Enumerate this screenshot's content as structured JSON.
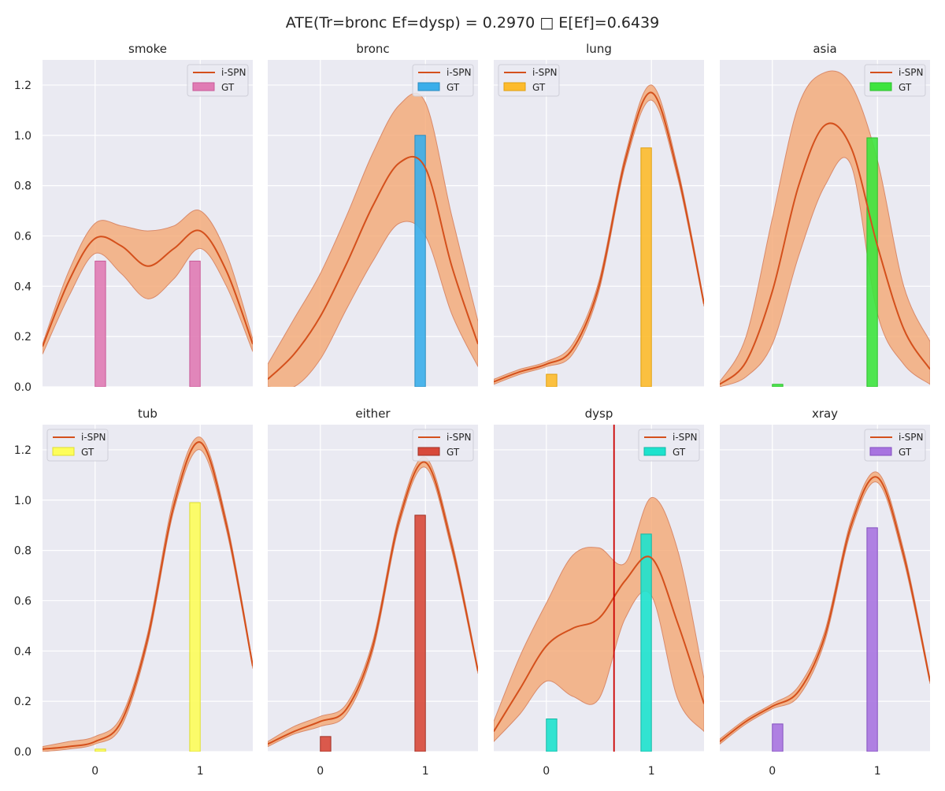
{
  "figure": {
    "title": "ATE(Tr=bronc Ef=dysp) = 0.2970 □ E[Ef]=0.6439"
  },
  "styles": {
    "panel_background": "#eaeaf2",
    "grid_color": "#ffffff",
    "curve_color": "#d4501c",
    "band_color": "#f4a873",
    "band_edge_color": "#d98a6a",
    "marker_line_color": "#cc0000"
  },
  "legend_labels": {
    "curve": "i-SPN",
    "bars": "GT"
  },
  "chart_data": [
    {
      "type": "area",
      "title": "smoke",
      "xlim": [
        -0.5,
        1.5
      ],
      "ylim": [
        0,
        1.3
      ],
      "xticks": [
        0,
        1
      ],
      "yticks": [
        0.0,
        0.2,
        0.4,
        0.6,
        0.8,
        1.0,
        1.2
      ],
      "legend_position": "top-right",
      "gt_color": "#e07bb4",
      "gt_edge": "#c85a98",
      "gt_bars": [
        {
          "x": 0,
          "value": 0.5
        },
        {
          "x": 1,
          "value": 0.5
        }
      ],
      "curve": {
        "x": [
          -0.5,
          -0.25,
          0.0,
          0.25,
          0.5,
          0.75,
          1.0,
          1.25,
          1.5
        ],
        "y": [
          0.16,
          0.42,
          0.59,
          0.56,
          0.48,
          0.55,
          0.62,
          0.46,
          0.17
        ]
      },
      "band_upper": [
        0.17,
        0.46,
        0.65,
        0.64,
        0.62,
        0.64,
        0.7,
        0.53,
        0.19
      ],
      "band_lower": [
        0.13,
        0.36,
        0.53,
        0.45,
        0.35,
        0.43,
        0.55,
        0.4,
        0.14
      ]
    },
    {
      "type": "area",
      "title": "bronc",
      "xlim": [
        -0.5,
        1.5
      ],
      "ylim": [
        0,
        1.3
      ],
      "xticks": [
        0,
        1
      ],
      "yticks": [
        0.0,
        0.2,
        0.4,
        0.6,
        0.8,
        1.0,
        1.2
      ],
      "legend_position": "top-right",
      "gt_color": "#3aaeea",
      "gt_edge": "#2a8cc0",
      "gt_bars": [
        {
          "x": 0,
          "value": 0.0
        },
        {
          "x": 1,
          "value": 1.0
        }
      ],
      "curve": {
        "x": [
          -0.5,
          -0.25,
          0.0,
          0.25,
          0.5,
          0.75,
          1.0,
          1.25,
          1.5
        ],
        "y": [
          0.03,
          0.13,
          0.28,
          0.49,
          0.72,
          0.89,
          0.87,
          0.48,
          0.17
        ]
      },
      "band_upper": [
        0.09,
        0.27,
        0.45,
        0.68,
        0.93,
        1.12,
        1.13,
        0.68,
        0.26
      ],
      "band_lower": [
        0.0,
        0.0,
        0.11,
        0.31,
        0.5,
        0.65,
        0.6,
        0.29,
        0.08
      ]
    },
    {
      "type": "area",
      "title": "lung",
      "xlim": [
        -0.5,
        1.5
      ],
      "ylim": [
        0,
        1.3
      ],
      "xticks": [
        0,
        1
      ],
      "yticks": [
        0.0,
        0.2,
        0.4,
        0.6,
        0.8,
        1.0,
        1.2
      ],
      "legend_position": "top-left",
      "gt_color": "#fdbb2c",
      "gt_edge": "#e0a010",
      "gt_bars": [
        {
          "x": 0,
          "value": 0.05
        },
        {
          "x": 1,
          "value": 0.95
        }
      ],
      "curve": {
        "x": [
          -0.5,
          -0.25,
          0.0,
          0.25,
          0.5,
          0.75,
          1.0,
          1.25,
          1.5
        ],
        "y": [
          0.02,
          0.06,
          0.09,
          0.15,
          0.4,
          0.9,
          1.17,
          0.85,
          0.33
        ]
      },
      "band_upper": [
        0.03,
        0.07,
        0.1,
        0.17,
        0.42,
        0.92,
        1.2,
        0.87,
        0.34
      ],
      "band_lower": [
        0.01,
        0.05,
        0.08,
        0.13,
        0.38,
        0.88,
        1.14,
        0.83,
        0.32
      ]
    },
    {
      "type": "area",
      "title": "asia",
      "xlim": [
        -0.5,
        1.5
      ],
      "ylim": [
        0,
        1.3
      ],
      "xticks": [
        0,
        1
      ],
      "yticks": [
        0.0,
        0.2,
        0.4,
        0.6,
        0.8,
        1.0,
        1.2
      ],
      "legend_position": "top-right",
      "gt_color": "#3ee43e",
      "gt_edge": "#2cbf2c",
      "gt_bars": [
        {
          "x": 0,
          "value": 0.01
        },
        {
          "x": 1,
          "value": 0.99
        }
      ],
      "curve": {
        "x": [
          -0.5,
          -0.25,
          0.0,
          0.25,
          0.5,
          0.75,
          1.0,
          1.25,
          1.5
        ],
        "y": [
          0.01,
          0.1,
          0.38,
          0.8,
          1.04,
          0.95,
          0.56,
          0.23,
          0.07
        ]
      },
      "band_upper": [
        0.02,
        0.2,
        0.67,
        1.12,
        1.25,
        1.2,
        0.9,
        0.4,
        0.18
      ],
      "band_lower": [
        0.0,
        0.04,
        0.17,
        0.52,
        0.8,
        0.88,
        0.29,
        0.09,
        0.01
      ]
    },
    {
      "type": "area",
      "title": "tub",
      "xlim": [
        -0.5,
        1.5
      ],
      "ylim": [
        0,
        1.3
      ],
      "xticks": [
        0,
        1
      ],
      "yticks": [
        0.0,
        0.2,
        0.4,
        0.6,
        0.8,
        1.0,
        1.2
      ],
      "legend_position": "top-left",
      "gt_color": "#fdfd5a",
      "gt_edge": "#dede30",
      "gt_bars": [
        {
          "x": 0,
          "value": 0.01
        },
        {
          "x": 1,
          "value": 0.99
        }
      ],
      "curve": {
        "x": [
          -0.5,
          -0.25,
          0.0,
          0.25,
          0.5,
          0.75,
          1.0,
          1.25,
          1.5
        ],
        "y": [
          0.01,
          0.02,
          0.04,
          0.12,
          0.45,
          0.98,
          1.23,
          0.9,
          0.34
        ]
      },
      "band_upper": [
        0.02,
        0.04,
        0.06,
        0.14,
        0.47,
        1.01,
        1.25,
        0.92,
        0.35
      ],
      "band_lower": [
        0.0,
        0.01,
        0.03,
        0.1,
        0.43,
        0.96,
        1.2,
        0.88,
        0.33
      ]
    },
    {
      "type": "area",
      "title": "either",
      "xlim": [
        -0.5,
        1.5
      ],
      "ylim": [
        0,
        1.3
      ],
      "xticks": [
        0,
        1
      ],
      "yticks": [
        0.0,
        0.2,
        0.4,
        0.6,
        0.8,
        1.0,
        1.2
      ],
      "legend_position": "top-right",
      "gt_color": "#d8493a",
      "gt_edge": "#a03024",
      "gt_bars": [
        {
          "x": 0,
          "value": 0.06
        },
        {
          "x": 1,
          "value": 0.94
        }
      ],
      "curve": {
        "x": [
          -0.5,
          -0.25,
          0.0,
          0.25,
          0.5,
          0.75,
          1.0,
          1.25,
          1.5
        ],
        "y": [
          0.03,
          0.08,
          0.12,
          0.17,
          0.42,
          0.92,
          1.15,
          0.82,
          0.32
        ]
      },
      "band_upper": [
        0.04,
        0.1,
        0.14,
        0.19,
        0.44,
        0.94,
        1.17,
        0.84,
        0.33
      ],
      "band_lower": [
        0.02,
        0.07,
        0.1,
        0.15,
        0.4,
        0.9,
        1.13,
        0.8,
        0.31
      ]
    },
    {
      "type": "area",
      "title": "dysp",
      "xlim": [
        -0.5,
        1.5
      ],
      "ylim": [
        0,
        1.3
      ],
      "xticks": [
        0,
        1
      ],
      "yticks": [
        0.0,
        0.2,
        0.4,
        0.6,
        0.8,
        1.0,
        1.2
      ],
      "legend_position": "top-right",
      "gt_color": "#1de2cd",
      "gt_edge": "#14b8a6",
      "gt_bars": [
        {
          "x": 0,
          "value": 0.13
        },
        {
          "x": 1,
          "value": 0.865
        }
      ],
      "vline": 0.6439,
      "curve": {
        "x": [
          -0.5,
          -0.25,
          0.0,
          0.25,
          0.5,
          0.75,
          1.0,
          1.25,
          1.5
        ],
        "y": [
          0.08,
          0.25,
          0.42,
          0.49,
          0.53,
          0.68,
          0.77,
          0.51,
          0.19
        ]
      },
      "band_upper": [
        0.12,
        0.38,
        0.59,
        0.78,
        0.81,
        0.75,
        1.01,
        0.8,
        0.29
      ],
      "band_lower": [
        0.04,
        0.15,
        0.28,
        0.22,
        0.21,
        0.53,
        0.62,
        0.21,
        0.08
      ]
    },
    {
      "type": "area",
      "title": "xray",
      "xlim": [
        -0.5,
        1.5
      ],
      "ylim": [
        0,
        1.3
      ],
      "xticks": [
        0,
        1
      ],
      "yticks": [
        0.0,
        0.2,
        0.4,
        0.6,
        0.8,
        1.0,
        1.2
      ],
      "legend_position": "top-right",
      "gt_color": "#a874e0",
      "gt_edge": "#8450c0",
      "gt_bars": [
        {
          "x": 0,
          "value": 0.11
        },
        {
          "x": 1,
          "value": 0.89
        }
      ],
      "curve": {
        "x": [
          -0.5,
          -0.25,
          0.0,
          0.25,
          0.5,
          0.75,
          1.0,
          1.25,
          1.5
        ],
        "y": [
          0.04,
          0.12,
          0.18,
          0.24,
          0.46,
          0.9,
          1.09,
          0.78,
          0.28
        ]
      },
      "band_upper": [
        0.05,
        0.13,
        0.19,
        0.26,
        0.48,
        0.92,
        1.11,
        0.8,
        0.29
      ],
      "band_lower": [
        0.03,
        0.11,
        0.17,
        0.22,
        0.44,
        0.88,
        1.07,
        0.76,
        0.27
      ]
    }
  ]
}
